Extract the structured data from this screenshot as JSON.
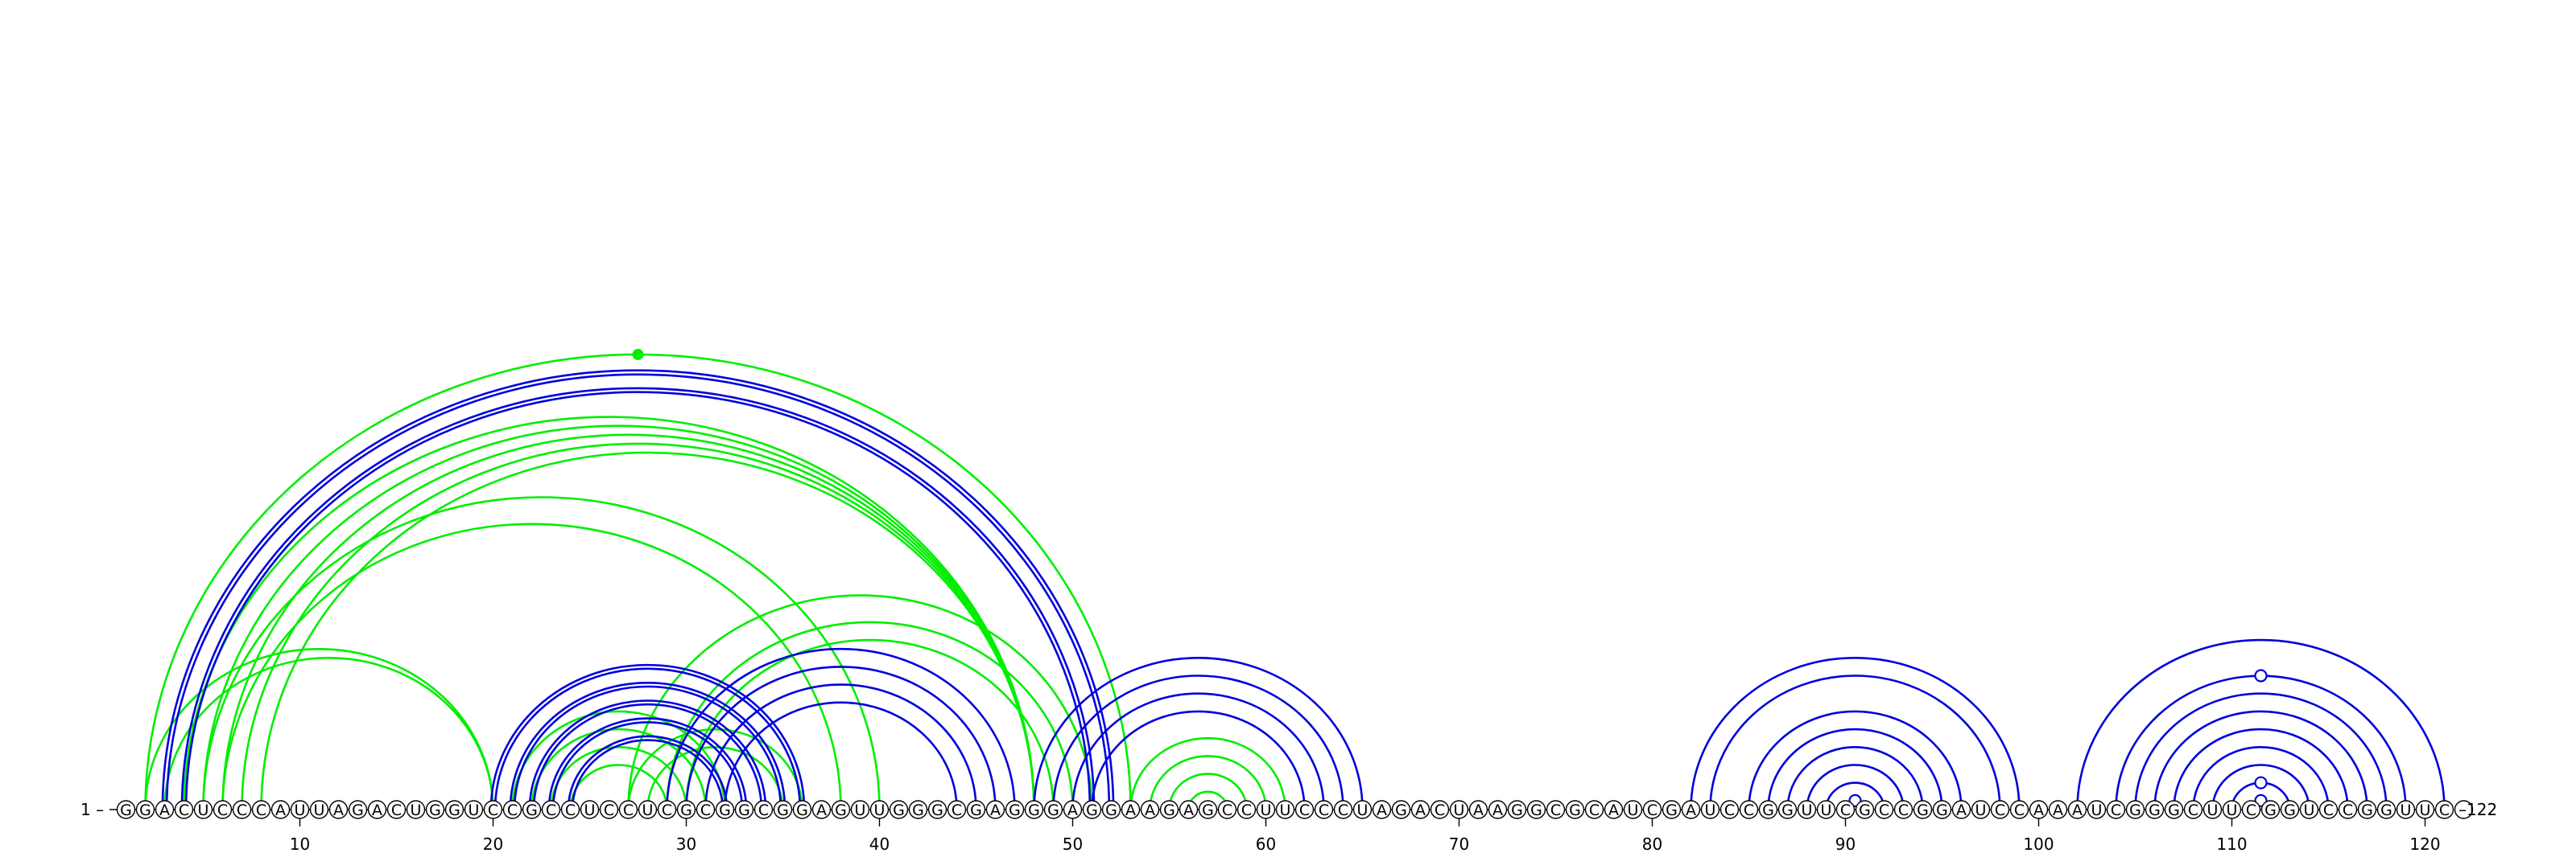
{
  "molecule": {
    "sequence": "GGACUCCCAUUAGACUGGUCCGCCUCCUCGCGGCGGAGUUGGGCGAGGGAGGAAGAGCCUUCCCUAGACUAAGGCGCAUCGAUCCGGUUCGCCGGAUCCAAAUCGGGCUUCGGUCCGGUUC",
    "length": 122,
    "start_label": "1 –",
    "end_label": "–122",
    "tick_labels": [
      "10",
      "20",
      "30",
      "40",
      "50",
      "60",
      "70",
      "80",
      "90",
      "100",
      "110",
      "120"
    ],
    "tick_positions": [
      10,
      20,
      30,
      40,
      50,
      60,
      70,
      80,
      90,
      100,
      110,
      120
    ]
  },
  "colors": {
    "blue": "#0000dd",
    "green": "#00ee00",
    "nucleotide_fill": "#ffffff",
    "nucleotide_stroke": "#000000"
  },
  "arcs": {
    "blue": [
      [
        3,
        52,
        2
      ],
      [
        4,
        51,
        2
      ],
      [
        20,
        36,
        2
      ],
      [
        21,
        35,
        2
      ],
      [
        22,
        34,
        2
      ],
      [
        23,
        33,
        2
      ],
      [
        24,
        32,
        2
      ],
      [
        29,
        47,
        1
      ],
      [
        30,
        46,
        1
      ],
      [
        31,
        45,
        1
      ],
      [
        32,
        44,
        1
      ],
      [
        48,
        65,
        1
      ],
      [
        49,
        64,
        1
      ],
      [
        50,
        63,
        1
      ],
      [
        51,
        62,
        1
      ],
      [
        82,
        99,
        1
      ],
      [
        83,
        98,
        1
      ],
      [
        85,
        96,
        1
      ],
      [
        86,
        95,
        1
      ],
      [
        87,
        94,
        1
      ],
      [
        88,
        93,
        1
      ],
      [
        89,
        92,
        1
      ],
      [
        102,
        121,
        1
      ],
      [
        104,
        119,
        1
      ],
      [
        105,
        118,
        1
      ],
      [
        106,
        117,
        1
      ],
      [
        107,
        116,
        1
      ],
      [
        108,
        115,
        1
      ],
      [
        109,
        114,
        1
      ],
      [
        110,
        113,
        1
      ]
    ],
    "green": [
      [
        2,
        20,
        1
      ],
      [
        3,
        20,
        1
      ],
      [
        4,
        48,
        1
      ],
      [
        5,
        48,
        1
      ],
      [
        6,
        48,
        1
      ],
      [
        7,
        48,
        1
      ],
      [
        8,
        48,
        1
      ],
      [
        5,
        40,
        1
      ],
      [
        6,
        38,
        1
      ],
      [
        21,
        32,
        1
      ],
      [
        22,
        31,
        1
      ],
      [
        23,
        30,
        1
      ],
      [
        24,
        29,
        1
      ],
      [
        27,
        36,
        1
      ],
      [
        28,
        35,
        1
      ],
      [
        27,
        51,
        1
      ],
      [
        29,
        50,
        1
      ],
      [
        30,
        49,
        1
      ],
      [
        53,
        61,
        1
      ],
      [
        54,
        60,
        1
      ],
      [
        55,
        59,
        1
      ],
      [
        56,
        58,
        1
      ],
      [
        2,
        53,
        1
      ]
    ]
  },
  "markers": {
    "green_dot": {
      "i": 2,
      "j": 53
    },
    "blue_circles": [
      [
        90,
        91
      ],
      [
        111,
        112
      ],
      [
        110,
        113
      ],
      [
        104,
        119
      ]
    ]
  }
}
